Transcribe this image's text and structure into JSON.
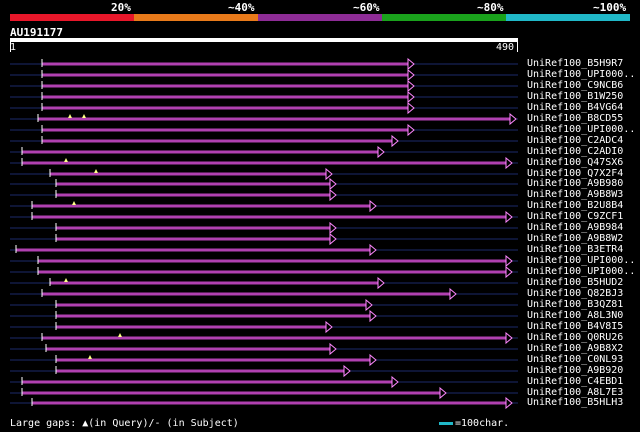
{
  "legend": {
    "segments": [
      {
        "label": "20%",
        "color": "#e8172a"
      },
      {
        "label": "~40%",
        "color": "#e87a1a"
      },
      {
        "label": "~60%",
        "color": "#8e2c96"
      },
      {
        "label": "~80%",
        "color": "#1aa21c"
      },
      {
        "label": "~100%",
        "color": "#20b8c8"
      }
    ]
  },
  "query": {
    "name": "AU191177",
    "start": "1",
    "end": "490"
  },
  "colors": {
    "hit_line": "#b040b0",
    "background_line": "#1c2a6a",
    "gap_dash": "#551a55",
    "arrow": "#ff88ff",
    "marker": "#ffff88"
  },
  "hits": [
    {
      "name": "UniRef100_B5H9R7",
      "start": 42,
      "end": 414
    },
    {
      "name": "UniRef100_UPI000..",
      "start": 42,
      "end": 414
    },
    {
      "name": "UniRef100_C9NCB6",
      "start": 42,
      "end": 414
    },
    {
      "name": "UniRef100_B1W250",
      "start": 42,
      "end": 414
    },
    {
      "name": "UniRef100_B4VG64",
      "start": 42,
      "end": 414
    },
    {
      "name": "UniRef100_B8CD55",
      "start": 38,
      "end": 516,
      "markers": [
        70,
        84
      ]
    },
    {
      "name": "UniRef100_UPI000..",
      "start": 42,
      "end": 414
    },
    {
      "name": "UniRef100_C2ADC4",
      "start": 42,
      "end": 398
    },
    {
      "name": "UniRef100_C2ADI0",
      "start": 22,
      "end": 384
    },
    {
      "name": "UniRef100_Q47SX6",
      "start": 22,
      "end": 512,
      "markers": [
        66
      ]
    },
    {
      "name": "UniRef100_Q7X2F4",
      "start": 50,
      "end": 332,
      "markers": [
        96
      ]
    },
    {
      "name": "UniRef100_A9B980",
      "start": 56,
      "end": 336
    },
    {
      "name": "UniRef100_A9B8W3",
      "start": 56,
      "end": 336
    },
    {
      "name": "UniRef100_B2U8B4",
      "start": 32,
      "end": 376,
      "markers": [
        74
      ]
    },
    {
      "name": "UniRef100_C9ZCF1",
      "start": 32,
      "end": 512
    },
    {
      "name": "UniRef100_A9B984",
      "start": 56,
      "end": 336
    },
    {
      "name": "UniRef100_A9B8W2",
      "start": 56,
      "end": 336
    },
    {
      "name": "UniRef100_B3ETR4",
      "start": 16,
      "end": 376
    },
    {
      "name": "UniRef100_UPI000..",
      "start": 38,
      "end": 512
    },
    {
      "name": "UniRef100_UPI000..",
      "start": 38,
      "end": 512
    },
    {
      "name": "UniRef100_B5HUD2",
      "start": 50,
      "end": 384,
      "markers": [
        66
      ]
    },
    {
      "name": "UniRef100_Q82BJ3",
      "start": 42,
      "end": 456
    },
    {
      "name": "UniRef100_B3QZ81",
      "start": 56,
      "end": 372
    },
    {
      "name": "UniRef100_A8L3N0",
      "start": 56,
      "end": 376
    },
    {
      "name": "UniRef100_B4V8I5",
      "start": 56,
      "end": 332
    },
    {
      "name": "UniRef100_Q0RU26",
      "start": 42,
      "end": 512,
      "markers": [
        120
      ]
    },
    {
      "name": "UniRef100_A9B8X2",
      "start": 46,
      "end": 336
    },
    {
      "name": "UniRef100_C0NL93",
      "start": 56,
      "end": 376,
      "markers": [
        90
      ]
    },
    {
      "name": "UniRef100_A9B920",
      "start": 56,
      "end": 350
    },
    {
      "name": "UniRef100_C4EBD1",
      "start": 22,
      "end": 398
    },
    {
      "name": "UniRef100_A8L7E3",
      "start": 22,
      "end": 446
    },
    {
      "name": "UniRef100_B5HLH3",
      "start": 32,
      "end": 512
    }
  ],
  "footer": {
    "text": "Large gaps: ▲(in Query)/- (in Subject)",
    "scale_text": "=100char."
  }
}
